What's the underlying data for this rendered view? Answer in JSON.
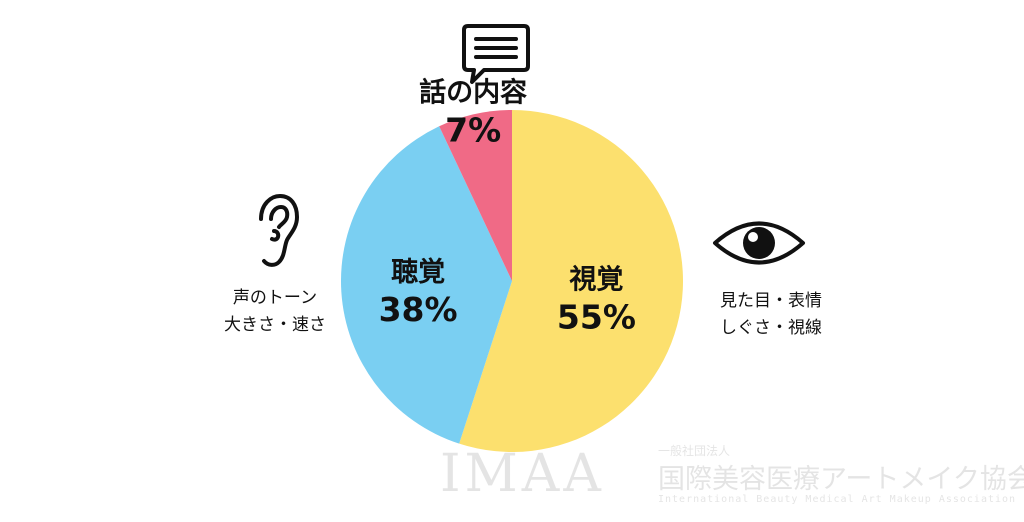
{
  "chart_data": {
    "type": "pie",
    "slices": [
      {
        "name": "視覚",
        "value": 55,
        "label": "55%",
        "color": "#FCE06E"
      },
      {
        "name": "聴覚",
        "value": 38,
        "label": "38%",
        "color": "#7ACFF2"
      },
      {
        "name": "話の内容",
        "value": 7,
        "label": "7%",
        "color": "#F06A86"
      }
    ],
    "start": "12 o'clock",
    "direction": "clockwise"
  },
  "annotations": {
    "left": {
      "line1": "声のトーン",
      "line2": "大きさ・速さ",
      "icon": "ear-icon"
    },
    "right": {
      "line1": "見た目・表情",
      "line2": "しぐさ・視線",
      "icon": "eye-icon"
    },
    "top": {
      "icon": "speech-bubble-icon"
    }
  },
  "watermark": {
    "acronym": "IMAA",
    "prefix": "一般社団法人",
    "org": "国際美容医療アートメイク協会",
    "english": "International Beauty Medical Art Makeup Association"
  },
  "colors": {
    "text": "#111111",
    "icon": "#111111",
    "watermark": "#8a8a8a"
  }
}
